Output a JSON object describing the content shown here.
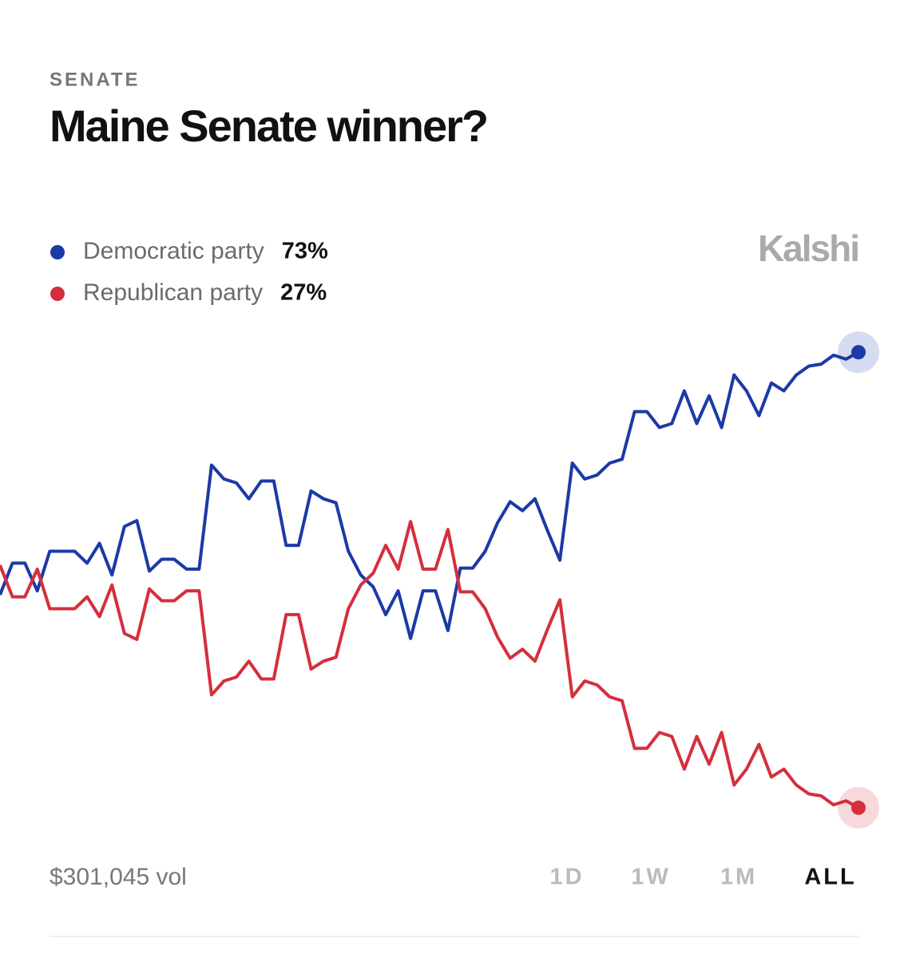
{
  "header": {
    "category": "SENATE",
    "title": "Maine Senate winner?"
  },
  "brand": "Kalshi",
  "chart_data": {
    "type": "line",
    "ylim": [
      24,
      76
    ],
    "series": [
      {
        "name": "Democratic party",
        "color": "#1b3aa6",
        "last_label": "73%",
        "values": [
          48.5,
          51.7,
          51.7,
          48.9,
          52.9,
          52.9,
          52.9,
          51.7,
          53.7,
          50.5,
          55.4,
          56.0,
          50.9,
          52.1,
          52.1,
          51.1,
          51.1,
          61.6,
          60.2,
          59.8,
          58.2,
          60.0,
          60.0,
          53.5,
          53.5,
          59.0,
          58.2,
          57.8,
          52.9,
          50.5,
          49.3,
          46.5,
          48.9,
          44.1,
          48.9,
          48.9,
          44.9,
          51.2,
          51.2,
          52.9,
          55.8,
          57.9,
          57.0,
          58.2,
          55.0,
          52.0,
          61.8,
          60.2,
          60.6,
          61.8,
          62.2,
          67.0,
          67.0,
          65.4,
          65.8,
          69.1,
          65.8,
          68.6,
          65.4,
          70.7,
          69.1,
          66.6,
          69.9,
          69.1,
          70.7,
          71.6,
          71.8,
          72.7,
          72.3,
          73.0
        ]
      },
      {
        "name": "Republican party",
        "color": "#d42f3d",
        "last_label": "27%",
        "values": [
          51.5,
          48.3,
          48.3,
          51.1,
          47.1,
          47.1,
          47.1,
          48.3,
          46.3,
          49.5,
          44.6,
          44.0,
          49.1,
          47.9,
          47.9,
          48.9,
          48.9,
          38.4,
          39.8,
          40.2,
          41.8,
          40.0,
          40.0,
          46.5,
          46.5,
          41.0,
          41.8,
          42.2,
          47.1,
          49.5,
          50.7,
          53.5,
          51.1,
          55.9,
          51.1,
          51.1,
          55.1,
          48.8,
          48.8,
          47.1,
          44.2,
          42.1,
          43.0,
          41.8,
          45.0,
          48.0,
          38.2,
          39.8,
          39.4,
          38.2,
          37.8,
          33.0,
          33.0,
          34.6,
          34.2,
          30.9,
          34.2,
          31.4,
          34.6,
          29.3,
          30.9,
          33.4,
          30.1,
          30.9,
          29.3,
          28.4,
          28.2,
          27.3,
          27.7,
          27.0
        ]
      }
    ]
  },
  "footer": {
    "volume": "$301,045 vol",
    "ranges": [
      "1D",
      "1W",
      "1M",
      "ALL"
    ],
    "active_range": 3
  }
}
